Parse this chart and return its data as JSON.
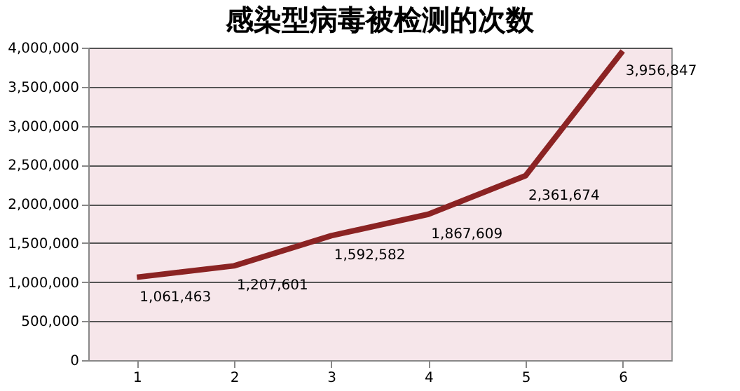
{
  "chart_data": {
    "type": "line",
    "title": "感染型病毒被检测的次数",
    "categories": [
      "1",
      "2",
      "3",
      "4",
      "5",
      "6"
    ],
    "series": [
      {
        "color": "#8b2323",
        "values": [
          1061463,
          1207601,
          1592582,
          1867609,
          2361674,
          3956847
        ],
        "value_labels": [
          "1,061,463",
          "1,207,601",
          "1,592,582",
          "1,867,609",
          "2,361,674",
          "3,956,847"
        ]
      }
    ],
    "ylim": [
      0,
      4000000
    ],
    "yticks": [
      0,
      {
        "value": 500000,
        "label": "500,000"
      },
      {
        "value": 1000000,
        "label": "1,000,000"
      },
      {
        "value": 1500000,
        "label": "1,500,000"
      },
      {
        "value": 2000000,
        "label": "2,000,000"
      },
      {
        "value": 2500000,
        "label": "2,500,000"
      },
      {
        "value": 3000000,
        "label": "3,000,000"
      },
      {
        "value": 3500000,
        "label": "3,500,000"
      },
      {
        "value": 4000000,
        "label": "4,000,000"
      }
    ],
    "grid": "y",
    "marker": "none",
    "line_style": "solid"
  }
}
